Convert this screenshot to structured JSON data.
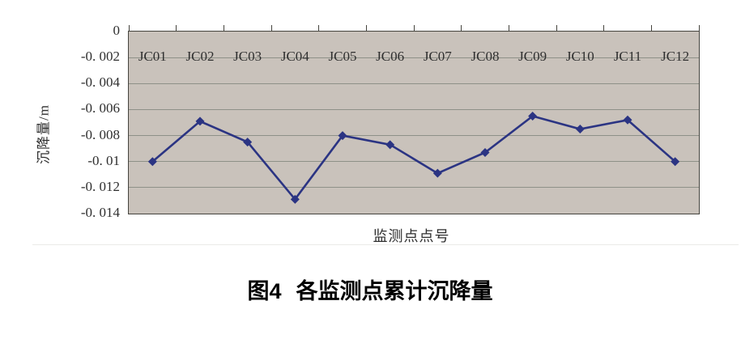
{
  "figure_caption": {
    "label": "图4",
    "title": "各监测点累计沉降量"
  },
  "chart_data": {
    "type": "line",
    "title": "",
    "xlabel": "监测点点号",
    "ylabel": "沉降量/m",
    "categories": [
      "JC01",
      "JC02",
      "JC03",
      "JC04",
      "JC05",
      "JC06",
      "JC07",
      "JC08",
      "JC09",
      "JC10",
      "JC11",
      "JC12"
    ],
    "series": [
      {
        "name": "累计沉降量",
        "values": [
          -0.01,
          -0.0069,
          -0.0085,
          -0.0129,
          -0.008,
          -0.0087,
          -0.0109,
          -0.0093,
          -0.0065,
          -0.0075,
          -0.0068,
          -0.01
        ]
      }
    ],
    "ylim": [
      -0.014,
      0
    ],
    "ytick_step": 0.002,
    "ytick_labels": [
      "0",
      "-0. 002",
      "-0. 004",
      "-0. 006",
      "-0. 008",
      "-0. 01",
      "-0. 012",
      "-0. 014"
    ],
    "grid": "horizontal",
    "legend_position": "none",
    "marker": "diamond",
    "colors": {
      "plot_bg": "#c9c2bb",
      "line": "#2b3483",
      "gridline": "#8e9188",
      "axis_border": "#45443e"
    }
  }
}
